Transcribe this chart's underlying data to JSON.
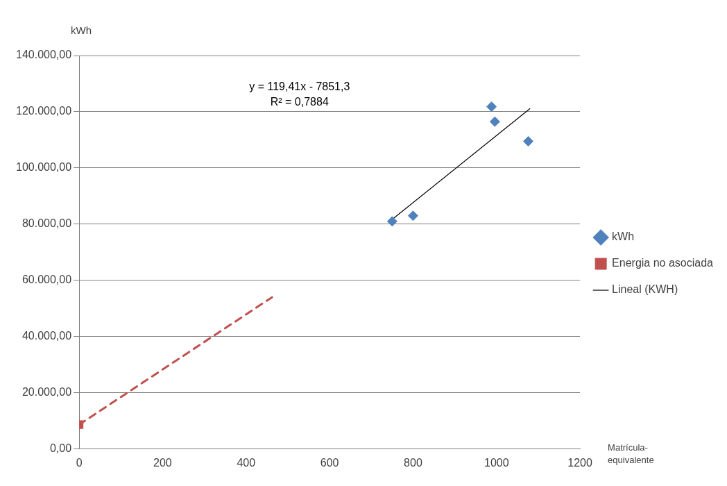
{
  "chart_data": {
    "type": "scatter",
    "xlabel": "Matrícula-equivalente",
    "ylabel": "kWh",
    "xlim": [
      0,
      1200
    ],
    "xticks": [
      0,
      200,
      400,
      600,
      800,
      1000,
      1200
    ],
    "ylim": [
      0,
      140000
    ],
    "yticks": [
      {
        "value": 0,
        "label": "0,00"
      },
      {
        "value": 20000,
        "label": "20.000,00"
      },
      {
        "value": 40000,
        "label": "40.000,00"
      },
      {
        "value": 60000,
        "label": "60.000,00"
      },
      {
        "value": 80000,
        "label": "80.000,00"
      },
      {
        "value": 100000,
        "label": "100.000,00"
      },
      {
        "value": 120000,
        "label": "120.000,00"
      },
      {
        "value": 140000,
        "label": "140.000,00"
      }
    ],
    "grid": "y",
    "legend": "right",
    "annotations": [
      "y = 119,41x - 7851,3",
      "R² = 0,7884"
    ],
    "series": [
      {
        "name": "kWh",
        "marker": "diamond",
        "color": "#4f81bd",
        "x": [
          750,
          800,
          988,
          996,
          1076
        ],
        "values": [
          81000,
          83000,
          121800,
          116500,
          109500
        ]
      },
      {
        "name": "Energia no asociada",
        "marker": "square",
        "color": "#c0504d",
        "x": [
          0
        ],
        "values": [
          8700
        ]
      },
      {
        "name": "Lineal (KWH)",
        "type": "line",
        "color": "#000000",
        "line_style": "solid",
        "x": [
          750,
          1080
        ],
        "values": [
          81700,
          121100
        ]
      },
      {
        "type": "line",
        "color": "#c0504d",
        "line_style": "dashed",
        "x": [
          0,
          462
        ],
        "values": [
          8700,
          54000
        ]
      }
    ]
  }
}
